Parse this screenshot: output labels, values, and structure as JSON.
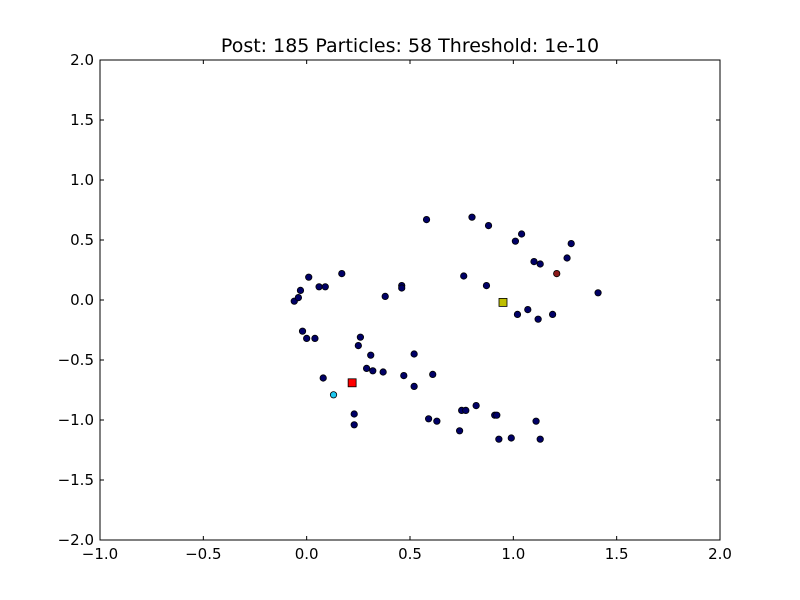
{
  "chart_data": {
    "type": "scatter",
    "title": "Post: 185 Particles: 58 Threshold: 1e-10",
    "xlabel": "",
    "ylabel": "",
    "xlim": [
      -1.0,
      2.0
    ],
    "ylim": [
      -2.0,
      2.0
    ],
    "x_ticks": [
      -1.0,
      -0.5,
      0.0,
      0.5,
      1.0,
      1.5,
      2.0
    ],
    "x_tick_labels": [
      "−1.0",
      "−0.5",
      "0.0",
      "0.5",
      "1.0",
      "1.5",
      "2.0"
    ],
    "y_ticks": [
      2.0,
      1.5,
      1.0,
      0.5,
      0.0,
      -0.5,
      -1.0,
      -1.5,
      -2.0
    ],
    "y_tick_labels": [
      "2.0",
      "1.5",
      "1.0",
      "0.5",
      "0.0",
      "−0.5",
      "−1.0",
      "−1.5",
      "−2.0"
    ],
    "grid": false,
    "colors": {
      "particle": "#000066",
      "cyan_particle": "#1ec8f0",
      "red_particle": "#8b1a1a",
      "red_square": "#ff0000",
      "yellow_square": "#bfbf00"
    },
    "particles": [
      {
        "x": -0.06,
        "y": -0.01
      },
      {
        "x": -0.04,
        "y": 0.02
      },
      {
        "x": -0.03,
        "y": 0.08
      },
      {
        "x": 0.01,
        "y": 0.19
      },
      {
        "x": 0.06,
        "y": 0.11
      },
      {
        "x": 0.09,
        "y": 0.11
      },
      {
        "x": 0.17,
        "y": 0.22
      },
      {
        "x": -0.02,
        "y": -0.26
      },
      {
        "x": 0.0,
        "y": -0.32
      },
      {
        "x": 0.04,
        "y": -0.32
      },
      {
        "x": 0.26,
        "y": -0.31
      },
      {
        "x": 0.25,
        "y": -0.38
      },
      {
        "x": 0.31,
        "y": -0.46
      },
      {
        "x": 0.08,
        "y": -0.65
      },
      {
        "x": 0.29,
        "y": -0.57
      },
      {
        "x": 0.32,
        "y": -0.59
      },
      {
        "x": 0.37,
        "y": -0.6
      },
      {
        "x": 0.38,
        "y": 0.03
      },
      {
        "x": 0.46,
        "y": 0.12
      },
      {
        "x": 0.46,
        "y": 0.1
      },
      {
        "x": 0.47,
        "y": -0.63
      },
      {
        "x": 0.52,
        "y": -0.45
      },
      {
        "x": 0.52,
        "y": -0.72
      },
      {
        "x": 0.58,
        "y": 0.67
      },
      {
        "x": 0.59,
        "y": -0.99
      },
      {
        "x": 0.61,
        "y": -0.62
      },
      {
        "x": 0.63,
        "y": -1.01
      },
      {
        "x": 0.23,
        "y": -0.95
      },
      {
        "x": 0.23,
        "y": -1.04
      },
      {
        "x": 0.74,
        "y": -1.09
      },
      {
        "x": 0.75,
        "y": -0.92
      },
      {
        "x": 0.77,
        "y": -0.92
      },
      {
        "x": 0.76,
        "y": 0.2
      },
      {
        "x": 0.8,
        "y": 0.69
      },
      {
        "x": 0.82,
        "y": -0.88
      },
      {
        "x": 0.87,
        "y": 0.12
      },
      {
        "x": 0.88,
        "y": 0.62
      },
      {
        "x": 0.91,
        "y": -0.96
      },
      {
        "x": 0.92,
        "y": -0.96
      },
      {
        "x": 0.93,
        "y": -1.16
      },
      {
        "x": 0.99,
        "y": -1.15
      },
      {
        "x": 1.01,
        "y": 0.49
      },
      {
        "x": 1.02,
        "y": -0.12
      },
      {
        "x": 1.04,
        "y": 0.55
      },
      {
        "x": 1.07,
        "y": -0.08
      },
      {
        "x": 1.1,
        "y": 0.32
      },
      {
        "x": 1.11,
        "y": -1.01
      },
      {
        "x": 1.12,
        "y": -0.16
      },
      {
        "x": 1.13,
        "y": 0.3
      },
      {
        "x": 1.13,
        "y": -1.16
      },
      {
        "x": 1.19,
        "y": -0.12
      },
      {
        "x": 1.26,
        "y": 0.35
      },
      {
        "x": 1.28,
        "y": 0.47
      },
      {
        "x": 1.41,
        "y": 0.06
      }
    ],
    "highlighted_particles": [
      {
        "x": 0.13,
        "y": -0.79,
        "color": "cyan_particle"
      },
      {
        "x": 1.21,
        "y": 0.22,
        "color": "red_particle"
      }
    ],
    "square_markers": [
      {
        "x": 0.22,
        "y": -0.69,
        "color": "red_square"
      },
      {
        "x": 0.95,
        "y": -0.02,
        "color": "yellow_square"
      }
    ]
  }
}
